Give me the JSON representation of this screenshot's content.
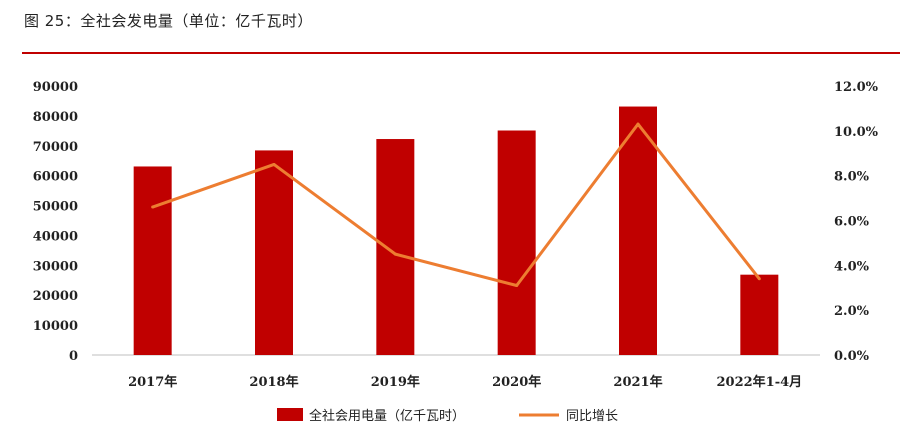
{
  "caption": "图 25：全社会发电量（单位：亿千瓦时）",
  "colors": {
    "bar": "#c00000",
    "line": "#ed7d31",
    "rule": "#c00000"
  },
  "chart_data": {
    "type": "bar+line",
    "title": "图 25：全社会发电量（单位：亿千瓦时）",
    "categories": [
      "2017年",
      "2018年",
      "2019年",
      "2020年",
      "2021年",
      "2022年1-4月"
    ],
    "series": [
      {
        "name": "全社会用电量（亿千瓦时）",
        "type": "bar",
        "axis": "left",
        "values": [
          63077,
          68449,
          72255,
          75110,
          83128,
          26874
        ]
      },
      {
        "name": "同比增长",
        "type": "line",
        "axis": "right",
        "values": [
          6.6,
          8.5,
          4.5,
          3.1,
          10.3,
          3.4
        ]
      }
    ],
    "y_left": {
      "min": 0,
      "max": 90000,
      "ticks": [
        0,
        10000,
        20000,
        30000,
        40000,
        50000,
        60000,
        70000,
        80000,
        90000
      ]
    },
    "y_right": {
      "min": 0,
      "max": 12,
      "ticks": [
        "0.0%",
        "2.0%",
        "4.0%",
        "6.0%",
        "8.0%",
        "10.0%",
        "12.0%"
      ]
    },
    "grid": false,
    "legend": {
      "position": "bottom",
      "items": [
        "全社会用电量（亿千瓦时）",
        "同比增长"
      ]
    }
  }
}
